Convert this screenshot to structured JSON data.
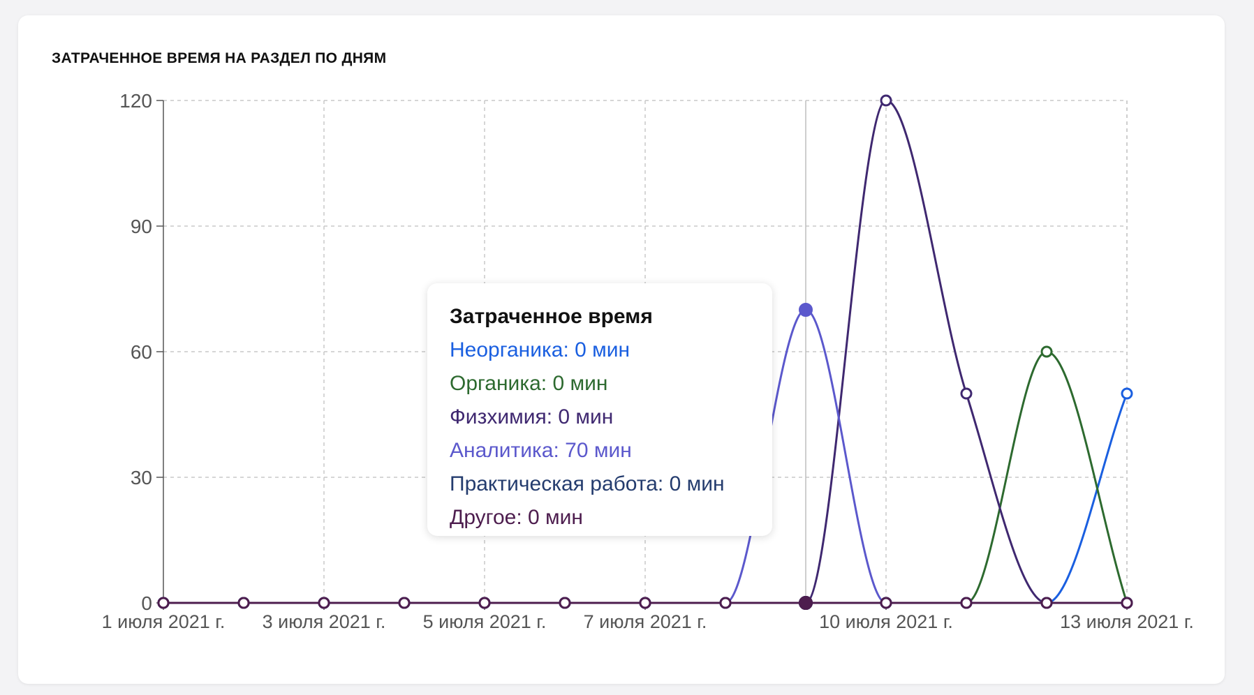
{
  "card": {
    "title": "ЗАТРАЧЕННОЕ ВРЕМЯ НА РАЗДЕЛ ПО ДНЯМ"
  },
  "chart_data": {
    "type": "line",
    "title": "ЗАТРАЧЕННОЕ ВРЕМЯ НА РАЗДЕЛ ПО ДНЯМ",
    "x": [
      "2021-07-01",
      "2021-07-02",
      "2021-07-03",
      "2021-07-04",
      "2021-07-05",
      "2021-07-06",
      "2021-07-07",
      "2021-07-08",
      "2021-07-09",
      "2021-07-10",
      "2021-07-11",
      "2021-07-12",
      "2021-07-13"
    ],
    "x_ticks": [
      {
        "x": "2021-07-01",
        "label": "1 июля 2021 г."
      },
      {
        "x": "2021-07-03",
        "label": "3 июля 2021 г."
      },
      {
        "x": "2021-07-05",
        "label": "5 июля 2021 г."
      },
      {
        "x": "2021-07-07",
        "label": "7 июля 2021 г."
      },
      {
        "x": "2021-07-10",
        "label": "10 июля 2021 г."
      },
      {
        "x": "2021-07-13",
        "label": "13 июля 2021 г."
      }
    ],
    "ylim": [
      0,
      120
    ],
    "y_ticks": [
      0,
      30,
      60,
      90,
      120
    ],
    "grid": true,
    "series": [
      {
        "name": "Неорганика",
        "color": "#1a5fe0",
        "values": [
          0,
          0,
          0,
          0,
          0,
          0,
          0,
          0,
          0,
          0,
          0,
          0,
          50
        ]
      },
      {
        "name": "Органика",
        "color": "#2d6a2f",
        "values": [
          0,
          0,
          0,
          0,
          0,
          0,
          0,
          0,
          0,
          0,
          0,
          60,
          0
        ]
      },
      {
        "name": "Физхимия",
        "color": "#3f2870",
        "values": [
          0,
          0,
          0,
          0,
          0,
          0,
          0,
          0,
          0,
          120,
          50,
          0,
          0
        ]
      },
      {
        "name": "Аналитика",
        "color": "#5b58cc",
        "values": [
          0,
          0,
          0,
          0,
          0,
          0,
          0,
          0,
          70,
          0,
          0,
          0,
          0
        ]
      },
      {
        "name": "Практическая работа",
        "color": "#243c6e",
        "values": [
          0,
          0,
          0,
          0,
          0,
          0,
          0,
          0,
          0,
          0,
          0,
          0,
          0
        ]
      },
      {
        "name": "Другое",
        "color": "#4d1d4e",
        "values": [
          0,
          0,
          0,
          0,
          0,
          0,
          0,
          0,
          0,
          0,
          0,
          0,
          0
        ]
      }
    ],
    "hover_index": 8
  },
  "tooltip": {
    "title": "Затраченное время",
    "rows": [
      {
        "text": "Неорганика: 0 мин",
        "color": "#1a5fe0"
      },
      {
        "text": "Органика: 0 мин",
        "color": "#2d6a2f"
      },
      {
        "text": "Физхимия: 0 мин",
        "color": "#3f2870"
      },
      {
        "text": "Аналитика: 70 мин",
        "color": "#5b58cc"
      },
      {
        "text": "Практическая работа: 0 мин",
        "color": "#243c6e"
      },
      {
        "text": "Другое: 0 мин",
        "color": "#4d1d4e"
      }
    ]
  }
}
